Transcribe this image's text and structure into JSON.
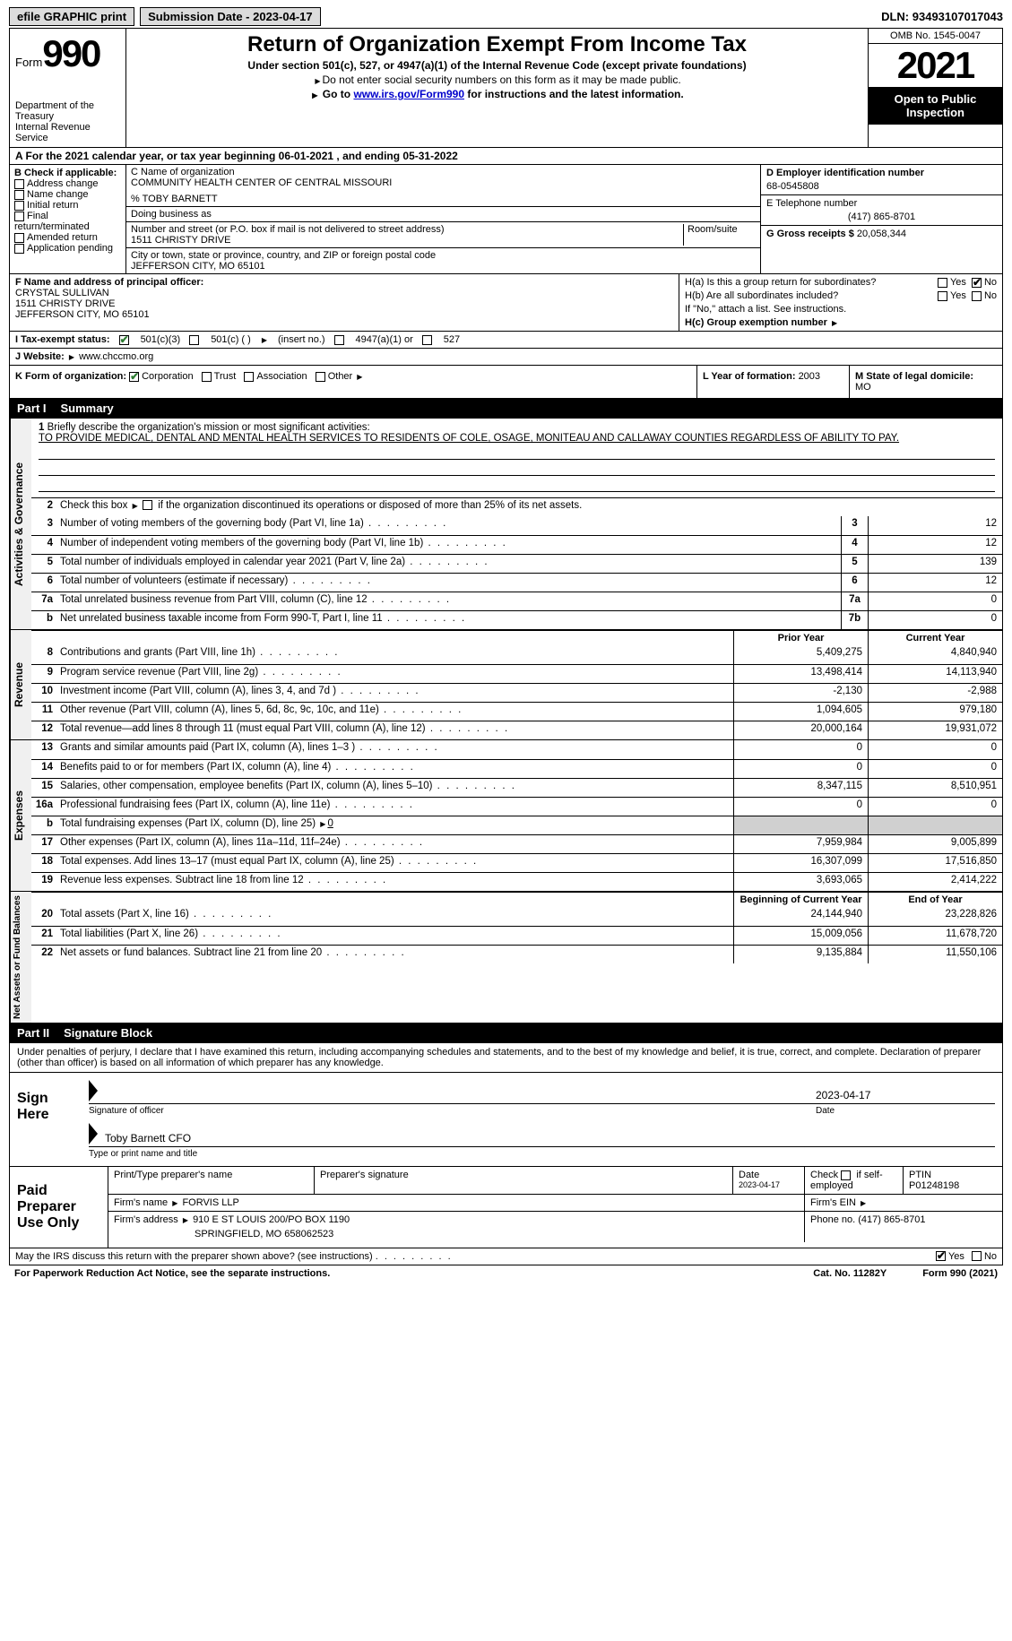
{
  "topbar": {
    "efile": "efile GRAPHIC print",
    "submission_label": "Submission Date - ",
    "submission_date": "2023-04-17",
    "dln_label": "DLN: ",
    "dln": "93493107017043"
  },
  "header": {
    "form_word": "Form",
    "form_no": "990",
    "dept": "Department of the Treasury",
    "irs": "Internal Revenue Service",
    "title": "Return of Organization Exempt From Income Tax",
    "sub": "Under section 501(c), 527, or 4947(a)(1) of the Internal Revenue Code (except private foundations)",
    "note1": "Do not enter social security numbers on this form as it may be made public.",
    "note2_a": "Go to ",
    "note2_link": "www.irs.gov/Form990",
    "note2_b": " for instructions and the latest information.",
    "omb": "OMB No. 1545-0047",
    "year": "2021",
    "inspect": "Open to Public Inspection"
  },
  "period": {
    "a": "A For the 2021 calendar year, or tax year beginning ",
    "begin": "06-01-2021",
    "mid": "   , and ending ",
    "end": "05-31-2022"
  },
  "colB": {
    "head": "B Check if applicable:",
    "items": [
      "Address change",
      "Name change",
      "Initial return",
      "Final return/terminated",
      "Amended return",
      "Application pending"
    ],
    "checked": [
      false,
      false,
      false,
      false,
      false,
      false
    ]
  },
  "colC": {
    "name_label": "C Name of organization",
    "name": "COMMUNITY HEALTH CENTER OF CENTRAL MISSOURI",
    "care_of": "% TOBY BARNETT",
    "dba_label": "Doing business as",
    "dba": "",
    "street_label": "Number and street (or P.O. box if mail is not delivered to street address)",
    "street": "1511 CHRISTY DRIVE",
    "room_label": "Room/suite",
    "room": "",
    "city_label": "City or town, state or province, country, and ZIP or foreign postal code",
    "city": "JEFFERSON CITY, MO  65101"
  },
  "colD": {
    "d_label": "D Employer identification number",
    "ein": "68-0545808",
    "e_label": "E Telephone number",
    "phone": "(417) 865-8701",
    "g_label": "G Gross receipts $ ",
    "gross": "20,058,344"
  },
  "sectF": {
    "label": "F Name and address of principal officer:",
    "name": "CRYSTAL SULLIVAN",
    "street": "1511 CHRISTY DRIVE",
    "city": "JEFFERSON CITY, MO  65101",
    "ha": "H(a)  Is this a group return for subordinates?",
    "hb": "H(b)  Are all subordinates included?",
    "hb_note": "If \"No,\" attach a list. See instructions.",
    "hc": "H(c)  Group exemption number",
    "yes": "Yes",
    "no": "No"
  },
  "lineI": {
    "label": "I  Tax-exempt status:",
    "opt1": "501(c)(3)",
    "opt2": "501(c) (  )",
    "opt2_note": "(insert no.)",
    "opt3": "4947(a)(1) or",
    "opt4": "527"
  },
  "lineJ": {
    "label": "J  Website:",
    "url": "www.chccmo.org"
  },
  "lineK": {
    "label": "K Form of organization:",
    "opts": [
      "Corporation",
      "Trust",
      "Association",
      "Other"
    ],
    "checked": [
      true,
      false,
      false,
      false
    ],
    "l_label": "L Year of formation: ",
    "l_val": "2003",
    "m_label": "M State of legal domicile:",
    "m_val": "MO"
  },
  "partI": {
    "num": "Part I",
    "title": "Summary"
  },
  "mission": {
    "num": "1",
    "label": "Briefly describe the organization's mission or most significant activities:",
    "text": "TO PROVIDE MEDICAL, DENTAL AND MENTAL HEALTH SERVICES TO RESIDENTS OF COLE, OSAGE, MONITEAU AND CALLAWAY COUNTIES REGARDLESS OF ABILITY TO PAY."
  },
  "line2": {
    "num": "2",
    "txt": "Check this box",
    "txt2": "if the organization discontinued its operations or disposed of more than 25% of its net assets."
  },
  "activities": {
    "vtab": "Activities & Governance",
    "rows": [
      {
        "n": "3",
        "t": "Number of voting members of the governing body (Part VI, line 1a)",
        "bn": "3",
        "v": "12"
      },
      {
        "n": "4",
        "t": "Number of independent voting members of the governing body (Part VI, line 1b)",
        "bn": "4",
        "v": "12"
      },
      {
        "n": "5",
        "t": "Total number of individuals employed in calendar year 2021 (Part V, line 2a)",
        "bn": "5",
        "v": "139"
      },
      {
        "n": "6",
        "t": "Total number of volunteers (estimate if necessary)",
        "bn": "6",
        "v": "12"
      },
      {
        "n": "7a",
        "t": "Total unrelated business revenue from Part VIII, column (C), line 12",
        "bn": "7a",
        "v": "0"
      },
      {
        "n": "b",
        "t": "Net unrelated business taxable income from Form 990-T, Part I, line 11",
        "bn": "7b",
        "v": "0"
      }
    ]
  },
  "cols": {
    "prior": "Prior Year",
    "current": "Current Year",
    "begin": "Beginning of Current Year",
    "end": "End of Year"
  },
  "revenue": {
    "vtab": "Revenue",
    "rows": [
      {
        "n": "8",
        "t": "Contributions and grants (Part VIII, line 1h)",
        "p": "5,409,275",
        "c": "4,840,940"
      },
      {
        "n": "9",
        "t": "Program service revenue (Part VIII, line 2g)",
        "p": "13,498,414",
        "c": "14,113,940"
      },
      {
        "n": "10",
        "t": "Investment income (Part VIII, column (A), lines 3, 4, and 7d )",
        "p": "-2,130",
        "c": "-2,988"
      },
      {
        "n": "11",
        "t": "Other revenue (Part VIII, column (A), lines 5, 6d, 8c, 9c, 10c, and 11e)",
        "p": "1,094,605",
        "c": "979,180"
      },
      {
        "n": "12",
        "t": "Total revenue—add lines 8 through 11 (must equal Part VIII, column (A), line 12)",
        "p": "20,000,164",
        "c": "19,931,072"
      }
    ]
  },
  "expenses": {
    "vtab": "Expenses",
    "rows": [
      {
        "n": "13",
        "t": "Grants and similar amounts paid (Part IX, column (A), lines 1–3 )",
        "p": "0",
        "c": "0"
      },
      {
        "n": "14",
        "t": "Benefits paid to or for members (Part IX, column (A), line 4)",
        "p": "0",
        "c": "0"
      },
      {
        "n": "15",
        "t": "Salaries, other compensation, employee benefits (Part IX, column (A), lines 5–10)",
        "p": "8,347,115",
        "c": "8,510,951"
      },
      {
        "n": "16a",
        "t": "Professional fundraising fees (Part IX, column (A), line 11e)",
        "p": "0",
        "c": "0"
      },
      {
        "n": "b",
        "t": "Total fundraising expenses (Part IX, column (D), line 25)",
        "tval": "0",
        "shade": true
      },
      {
        "n": "17",
        "t": "Other expenses (Part IX, column (A), lines 11a–11d, 11f–24e)",
        "p": "7,959,984",
        "c": "9,005,899"
      },
      {
        "n": "18",
        "t": "Total expenses. Add lines 13–17 (must equal Part IX, column (A), line 25)",
        "p": "16,307,099",
        "c": "17,516,850"
      },
      {
        "n": "19",
        "t": "Revenue less expenses. Subtract line 18 from line 12",
        "p": "3,693,065",
        "c": "2,414,222"
      }
    ]
  },
  "netassets": {
    "vtab": "Net Assets or Fund Balances",
    "rows": [
      {
        "n": "20",
        "t": "Total assets (Part X, line 16)",
        "p": "24,144,940",
        "c": "23,228,826"
      },
      {
        "n": "21",
        "t": "Total liabilities (Part X, line 26)",
        "p": "15,009,056",
        "c": "11,678,720"
      },
      {
        "n": "22",
        "t": "Net assets or fund balances. Subtract line 21 from line 20",
        "p": "9,135,884",
        "c": "11,550,106"
      }
    ]
  },
  "partII": {
    "num": "Part II",
    "title": "Signature Block",
    "decl": "Under penalties of perjury, I declare that I have examined this return, including accompanying schedules and statements, and to the best of my knowledge and belief, it is true, correct, and complete. Declaration of preparer (other than officer) is based on all information of which preparer has any knowledge."
  },
  "sign": {
    "here": "Sign Here",
    "sig_label": "Signature of officer",
    "date_label": "Date",
    "date": "2023-04-17",
    "name": "Toby Barnett CFO",
    "name_label": "Type or print name and title"
  },
  "paid": {
    "label": "Paid Preparer Use Only",
    "h1": "Print/Type preparer's name",
    "h2": "Preparer's signature",
    "h3": "Date",
    "h3v": "2023-04-17",
    "h4a": "Check",
    "h4b": "if self-employed",
    "h5": "PTIN",
    "h5v": "P01248198",
    "firm_name_l": "Firm's name",
    "firm_name": "FORVIS LLP",
    "firm_ein_l": "Firm's EIN",
    "firm_ein": "",
    "firm_addr_l": "Firm's address",
    "firm_addr1": "910 E ST LOUIS 200/PO BOX 1190",
    "firm_addr2": "SPRINGFIELD, MO  658062523",
    "phone_l": "Phone no. ",
    "phone": "(417) 865-8701"
  },
  "footer": {
    "q": "May the IRS discuss this return with the preparer shown above? (see instructions)",
    "yes": "Yes",
    "no": "No",
    "pra": "For Paperwork Reduction Act Notice, see the separate instructions.",
    "cat": "Cat. No. 11282Y",
    "form": "Form 990 (2021)"
  }
}
